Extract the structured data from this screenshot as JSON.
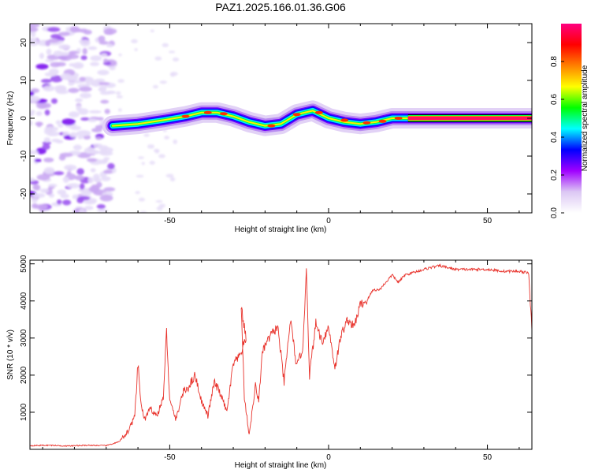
{
  "title": "PAZ1.2025.166.01.36.G06",
  "chart_data": [
    {
      "type": "heatmap",
      "xlabel": "Height of straight line (km)",
      "ylabel": "Frequency (Hz)",
      "xlim": [
        -94,
        64
      ],
      "ylim": [
        -25,
        25
      ],
      "x_ticks": [
        -50,
        0,
        50
      ],
      "y_ticks": [
        -20,
        -10,
        0,
        10,
        20
      ],
      "colorbar": {
        "label": "Normalized spectral amplitude",
        "range": [
          0,
          1
        ],
        "ticks": [
          "0.0",
          "0.2",
          "0.4",
          "0.6",
          "0.8"
        ],
        "colors": [
          "#ffffff",
          "#dcc8f4",
          "#a000ff",
          "#0000ff",
          "#00ffff",
          "#00ff00",
          "#ffff00",
          "#ff8000",
          "#ff0000",
          "#ff0080"
        ]
      },
      "ridge_center": {
        "x": [
          -68,
          -60,
          -52,
          -45,
          -40,
          -35,
          -30,
          -25,
          -20,
          -15,
          -10,
          -5,
          0,
          5,
          10,
          15,
          20,
          25,
          64
        ],
        "y": [
          -2,
          -1.5,
          -0.5,
          0.5,
          1.5,
          1.5,
          0.5,
          -1,
          -2,
          -1.5,
          1,
          2,
          0,
          -1,
          -1.5,
          -1,
          0,
          0,
          0
        ]
      },
      "noise_region_x": [
        -94,
        -68
      ]
    },
    {
      "type": "line",
      "xlabel": "Height of straight line (km)",
      "ylabel": "SNR (10 * v/v)",
      "xlim": [
        -94,
        64
      ],
      "ylim": [
        0,
        5100
      ],
      "x_ticks": [
        -50,
        0,
        50
      ],
      "y_ticks": [
        1000,
        2000,
        3000,
        4000,
        5000
      ],
      "line_color": "#e8312a",
      "series": [
        {
          "x": [
            -94,
            -88,
            -82,
            -76,
            -70,
            -66,
            -63,
            -61,
            -60,
            -59,
            -58,
            -56,
            -54,
            -52,
            -51,
            -50,
            -48,
            -46,
            -44,
            -42,
            -40,
            -38,
            -36,
            -34,
            -32,
            -30,
            -28,
            -26,
            -27.5,
            -26.5,
            -25,
            -23,
            -22,
            -21,
            -20,
            -18,
            -16,
            -14,
            -12,
            -10,
            -8,
            -7,
            -6,
            -4,
            -2,
            0,
            2,
            4,
            6,
            8,
            10,
            12,
            14,
            16,
            18,
            20,
            22,
            24,
            26,
            28,
            30,
            32,
            35,
            40,
            45,
            50,
            55,
            60,
            63,
            64
          ],
          "y": [
            100,
            110,
            90,
            110,
            100,
            200,
            500,
            900,
            2300,
            1200,
            800,
            1100,
            900,
            1400,
            3200,
            1300,
            800,
            1500,
            1700,
            2000,
            1300,
            900,
            1800,
            1500,
            1000,
            2300,
            2500,
            3000,
            3850,
            1400,
            400,
            1700,
            1300,
            2500,
            2800,
            3100,
            3300,
            1800,
            3500,
            2200,
            2800,
            4900,
            2000,
            3400,
            2900,
            3300,
            2200,
            3100,
            3500,
            3300,
            3900,
            4000,
            4300,
            4300,
            4500,
            4700,
            4500,
            4700,
            4750,
            4800,
            4850,
            4900,
            4950,
            4850,
            4850,
            4850,
            4800,
            4800,
            4750,
            3200
          ]
        }
      ]
    }
  ]
}
